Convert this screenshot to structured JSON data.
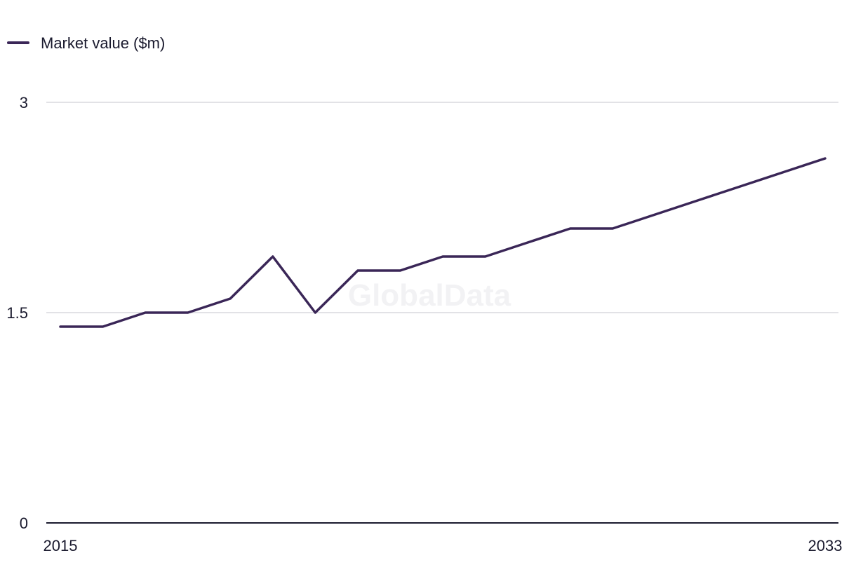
{
  "chart_data": {
    "type": "line",
    "title": "",
    "xlabel": "",
    "ylabel": "",
    "x": [
      2015,
      2016,
      2017,
      2018,
      2019,
      2020,
      2021,
      2022,
      2023,
      2024,
      2025,
      2026,
      2027,
      2028,
      2029,
      2030,
      2031,
      2032,
      2033
    ],
    "series": [
      {
        "name": "Market value ($m)",
        "values": [
          1.4,
          1.4,
          1.5,
          1.5,
          1.6,
          1.9,
          1.5,
          1.8,
          1.8,
          1.9,
          1.9,
          2.0,
          2.1,
          2.1,
          2.2,
          2.3,
          2.4,
          2.5,
          2.6
        ]
      }
    ],
    "xlim": [
      2015,
      2033
    ],
    "ylim": [
      0,
      3
    ],
    "y_ticks": [
      "0",
      "1.5",
      "3"
    ],
    "x_ticks": [
      "2015",
      "2033"
    ],
    "x_tick_values": [
      2015,
      2033
    ],
    "y_tick_values": [
      0,
      1.5,
      3
    ],
    "grid": "horizontal",
    "legend": "top-left",
    "colors": {
      "line": "#3a2657",
      "grid": "#d9d9dd",
      "axis": "#1a1a2e"
    }
  },
  "watermark": "GlobalData"
}
